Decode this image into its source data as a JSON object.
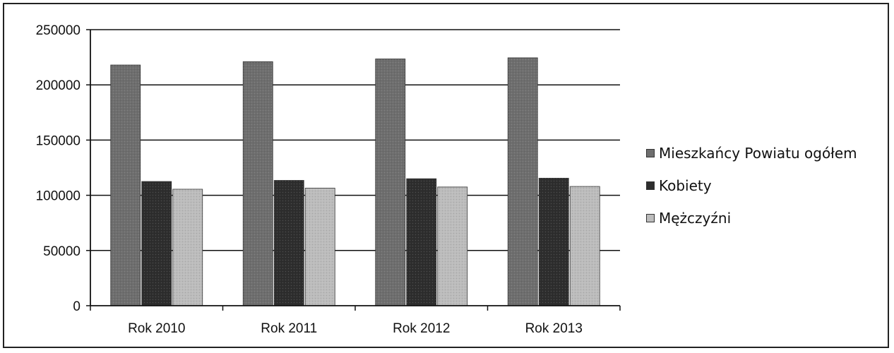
{
  "chart_data": {
    "type": "bar",
    "title": "",
    "xlabel": "",
    "ylabel": "",
    "categories": [
      "Rok 2010",
      "Rok 2011",
      "Rok 2012",
      "Rok 2013"
    ],
    "series": [
      {
        "name": "Mieszkańcy Powiatu ogółem",
        "values": [
          218000,
          221000,
          223500,
          224500
        ],
        "color": "#6e6e6e"
      },
      {
        "name": "Kobiety",
        "values": [
          112500,
          113500,
          115000,
          115500
        ],
        "color": "#2e2e2e"
      },
      {
        "name": "Mężczyźni",
        "values": [
          105500,
          106500,
          107500,
          108000
        ],
        "color": "#bcbcbc"
      }
    ],
    "ylim": [
      0,
      250000
    ],
    "yticks": [
      0,
      50000,
      100000,
      150000,
      200000,
      250000
    ],
    "ytick_labels": [
      "0",
      "50000",
      "100000",
      "150000",
      "200000",
      "250000"
    ],
    "grid": true,
    "legend_position": "right"
  }
}
